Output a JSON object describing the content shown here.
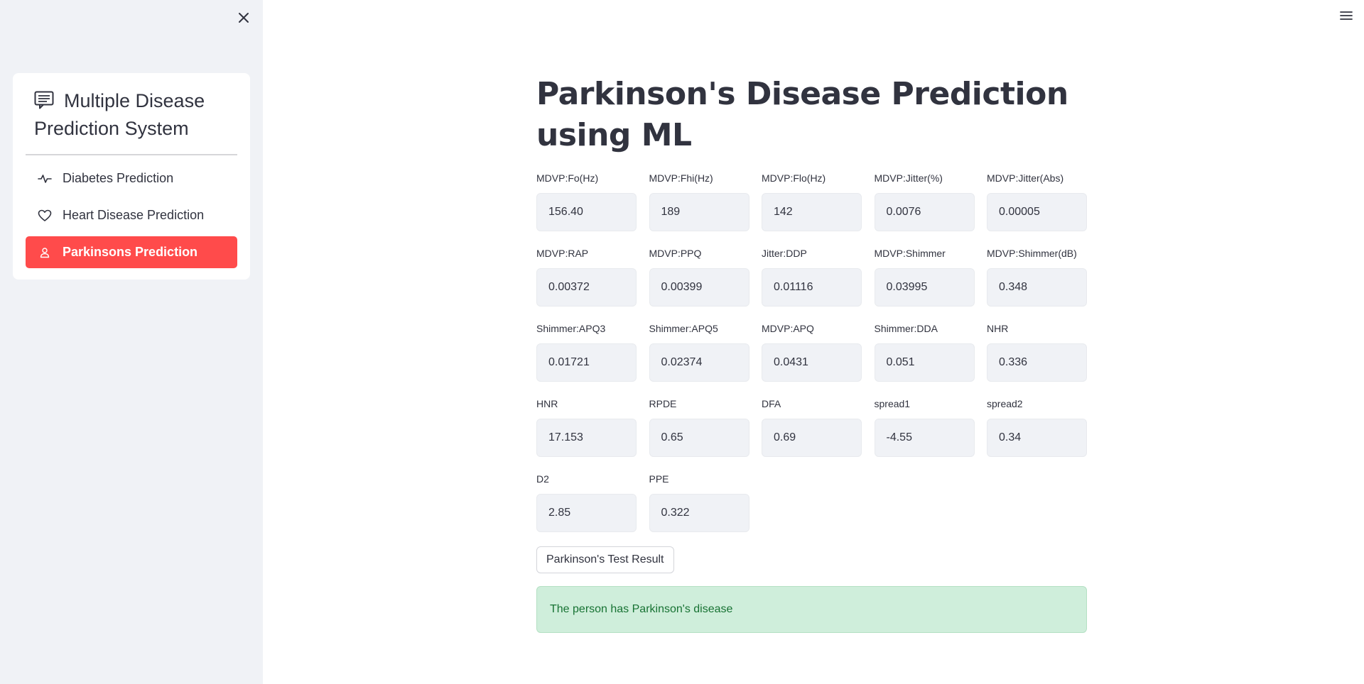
{
  "sidebar": {
    "title": "Multiple Disease Prediction System",
    "items": [
      {
        "label": "Diabetes Prediction",
        "icon": "activity-icon"
      },
      {
        "label": "Heart Disease Prediction",
        "icon": "heart-icon"
      },
      {
        "label": "Parkinsons Prediction",
        "icon": "person-icon",
        "active": true
      }
    ],
    "accent_color": "#ff4b4b"
  },
  "main": {
    "title": "Parkinson's Disease Prediction using ML",
    "fields": [
      {
        "label": "MDVP:Fo(Hz)",
        "value": "156.40"
      },
      {
        "label": "MDVP:Fhi(Hz)",
        "value": "189"
      },
      {
        "label": "MDVP:Flo(Hz)",
        "value": "142"
      },
      {
        "label": "MDVP:Jitter(%)",
        "value": "0.0076"
      },
      {
        "label": "MDVP:Jitter(Abs)",
        "value": "0.00005"
      },
      {
        "label": "MDVP:RAP",
        "value": "0.00372"
      },
      {
        "label": "MDVP:PPQ",
        "value": "0.00399"
      },
      {
        "label": "Jitter:DDP",
        "value": "0.01116"
      },
      {
        "label": "MDVP:Shimmer",
        "value": "0.03995"
      },
      {
        "label": "MDVP:Shimmer(dB)",
        "value": "0.348"
      },
      {
        "label": "Shimmer:APQ3",
        "value": "0.01721"
      },
      {
        "label": "Shimmer:APQ5",
        "value": "0.02374"
      },
      {
        "label": "MDVP:APQ",
        "value": "0.0431"
      },
      {
        "label": "Shimmer:DDA",
        "value": "0.051"
      },
      {
        "label": "NHR",
        "value": "0.336"
      },
      {
        "label": "HNR",
        "value": "17.153"
      },
      {
        "label": "RPDE",
        "value": "0.65"
      },
      {
        "label": "DFA",
        "value": "0.69"
      },
      {
        "label": "spread1",
        "value": "-4.55"
      },
      {
        "label": "spread2",
        "value": "0.34"
      },
      {
        "label": "D2",
        "value": "2.85"
      },
      {
        "label": "PPE",
        "value": "0.322"
      }
    ],
    "button_label": "Parkinson's Test Result",
    "result_text": "The person has Parkinson's disease",
    "result_color": "#177233"
  }
}
